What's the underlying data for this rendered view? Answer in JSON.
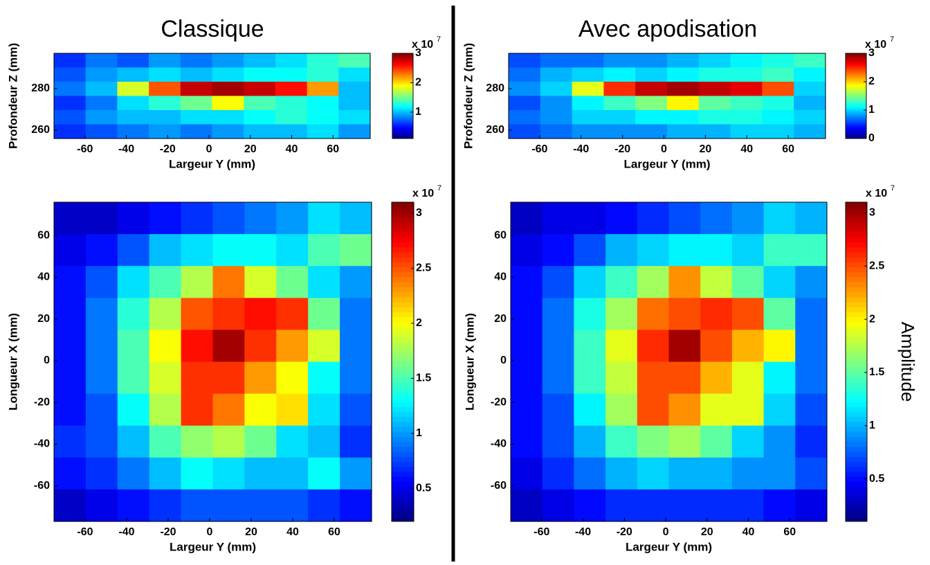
{
  "chart_data": [
    {
      "type": "heatmap",
      "title": "Classique",
      "xlabel": "Largeur Y (mm)",
      "ylabel": "Profondeur Z (mm)",
      "xlim": [
        -75,
        78
      ],
      "ylim": [
        256,
        297
      ],
      "xticks": [
        -60,
        -40,
        -20,
        0,
        20,
        40,
        60
      ],
      "yticks": [
        260,
        280
      ],
      "clim": [
        0.1,
        3
      ],
      "cticks": [
        1,
        2,
        3
      ],
      "colorbar_scale": "x 10",
      "colorbar_exponent": 7,
      "z": [
        [
          0.6,
          0.8,
          0.7,
          0.9,
          0.8,
          0.9,
          1.0,
          1.1,
          1.3,
          1.4
        ],
        [
          0.7,
          0.9,
          1.0,
          1.1,
          1.0,
          1.1,
          1.2,
          1.2,
          1.3,
          1.1
        ],
        [
          0.8,
          1.0,
          1.8,
          2.4,
          2.8,
          2.9,
          2.8,
          2.6,
          2.2,
          1.0
        ],
        [
          0.6,
          0.8,
          1.1,
          1.3,
          1.5,
          1.9,
          1.4,
          1.3,
          1.2,
          1.0
        ],
        [
          0.7,
          0.9,
          1.0,
          1.0,
          1.1,
          1.1,
          1.2,
          1.3,
          1.2,
          1.1
        ],
        [
          0.6,
          0.7,
          0.8,
          0.9,
          0.8,
          0.9,
          1.0,
          1.0,
          1.1,
          0.9
        ]
      ]
    },
    {
      "type": "heatmap",
      "title": "Avec apodisation",
      "xlabel": "Largeur Y (mm)",
      "ylabel": "Profondeur Z (mm)",
      "xlim": [
        -75,
        78
      ],
      "ylim": [
        256,
        297
      ],
      "xticks": [
        -60,
        -40,
        -20,
        0,
        20,
        40,
        60
      ],
      "yticks": [
        260,
        280
      ],
      "clim": [
        0,
        3
      ],
      "cticks": [
        0,
        1,
        2,
        3
      ],
      "colorbar_scale": "x 10",
      "colorbar_exponent": 7,
      "z": [
        [
          0.6,
          0.7,
          0.7,
          0.8,
          0.8,
          0.9,
          1.0,
          1.1,
          1.2,
          1.3
        ],
        [
          0.7,
          0.9,
          1.0,
          1.1,
          1.0,
          1.1,
          1.2,
          1.2,
          1.3,
          1.1
        ],
        [
          0.8,
          1.0,
          1.8,
          2.5,
          2.8,
          2.9,
          2.8,
          2.7,
          2.4,
          1.0
        ],
        [
          0.6,
          0.8,
          1.1,
          1.3,
          1.5,
          1.9,
          1.4,
          1.3,
          1.2,
          0.9
        ],
        [
          0.7,
          0.8,
          1.0,
          1.0,
          1.1,
          1.1,
          1.2,
          1.2,
          1.1,
          1.0
        ],
        [
          0.6,
          0.7,
          0.8,
          0.8,
          0.8,
          0.9,
          0.9,
          1.0,
          1.0,
          0.9
        ]
      ]
    },
    {
      "type": "heatmap",
      "xlabel": "Largeur Y (mm)",
      "ylabel": "Longueur X (mm)",
      "xlim": [
        -75,
        78
      ],
      "ylim": [
        -77,
        76
      ],
      "xticks": [
        -60,
        -40,
        -20,
        0,
        20,
        40,
        60
      ],
      "yticks": [
        -60,
        -40,
        -20,
        0,
        20,
        40,
        60
      ],
      "clim": [
        0.2,
        3.1
      ],
      "cticks": [
        0.5,
        1,
        1.5,
        2,
        2.5,
        3
      ],
      "colorbar_scale": "x 10",
      "colorbar_exponent": 7,
      "z": [
        [
          0.4,
          0.4,
          0.5,
          0.6,
          0.7,
          0.8,
          0.9,
          1.0,
          1.2,
          1.1
        ],
        [
          0.5,
          0.6,
          0.8,
          1.1,
          1.2,
          1.3,
          1.3,
          1.2,
          1.5,
          1.6
        ],
        [
          0.6,
          0.8,
          1.2,
          1.5,
          1.8,
          2.4,
          1.9,
          1.6,
          1.2,
          1.0
        ],
        [
          0.6,
          0.9,
          1.4,
          1.8,
          2.5,
          2.6,
          2.7,
          2.6,
          1.6,
          0.9
        ],
        [
          0.6,
          0.9,
          1.5,
          2.0,
          2.7,
          3.0,
          2.6,
          2.3,
          1.9,
          0.9
        ],
        [
          0.6,
          0.9,
          1.5,
          1.9,
          2.6,
          2.6,
          2.3,
          2.0,
          1.3,
          0.9
        ],
        [
          0.6,
          0.8,
          1.3,
          1.8,
          2.6,
          2.4,
          2.0,
          2.1,
          1.2,
          0.8
        ],
        [
          0.7,
          0.8,
          1.1,
          1.5,
          1.7,
          1.8,
          1.6,
          1.2,
          1.1,
          0.7
        ],
        [
          0.6,
          0.7,
          0.9,
          1.1,
          1.3,
          1.2,
          1.1,
          1.1,
          1.3,
          1.0
        ],
        [
          0.4,
          0.5,
          0.6,
          0.7,
          0.8,
          0.8,
          0.8,
          0.8,
          0.7,
          0.6
        ]
      ]
    },
    {
      "type": "heatmap",
      "xlabel": "Largeur Y (mm)",
      "ylabel": "Longueur X (mm)",
      "xlim": [
        -75,
        78
      ],
      "ylim": [
        -77,
        76
      ],
      "xticks": [
        -60,
        -40,
        -20,
        0,
        20,
        40,
        60
      ],
      "yticks": [
        -60,
        -40,
        -20,
        0,
        20,
        40,
        60
      ],
      "clim": [
        0.1,
        3.1
      ],
      "cticks": [
        0.5,
        1,
        1.5,
        2,
        2.5,
        3
      ],
      "colorbar_scale": "x 10",
      "colorbar_exponent": 7,
      "colorbar_label": "Amplitude",
      "z": [
        [
          0.3,
          0.4,
          0.4,
          0.5,
          0.6,
          0.7,
          0.8,
          0.9,
          1.1,
          1.0
        ],
        [
          0.4,
          0.5,
          0.7,
          1.0,
          1.1,
          1.2,
          1.2,
          1.1,
          1.4,
          1.4
        ],
        [
          0.5,
          0.7,
          1.1,
          1.4,
          1.7,
          2.3,
          1.8,
          1.5,
          1.1,
          0.9
        ],
        [
          0.5,
          0.8,
          1.3,
          1.7,
          2.4,
          2.5,
          2.6,
          2.5,
          1.5,
          0.8
        ],
        [
          0.5,
          0.8,
          1.4,
          1.9,
          2.6,
          3.0,
          2.5,
          2.2,
          2.0,
          0.8
        ],
        [
          0.5,
          0.8,
          1.4,
          1.8,
          2.5,
          2.5,
          2.2,
          1.9,
          1.2,
          0.8
        ],
        [
          0.5,
          0.7,
          1.2,
          1.7,
          2.5,
          2.3,
          1.9,
          1.9,
          1.1,
          0.7
        ],
        [
          0.5,
          0.7,
          1.0,
          1.4,
          1.6,
          1.7,
          1.5,
          1.1,
          0.9,
          0.6
        ],
        [
          0.4,
          0.6,
          0.8,
          1.0,
          1.1,
          1.0,
          1.0,
          0.9,
          0.9,
          0.7
        ],
        [
          0.3,
          0.4,
          0.5,
          0.6,
          0.6,
          0.6,
          0.6,
          0.6,
          0.5,
          0.4
        ]
      ]
    }
  ]
}
